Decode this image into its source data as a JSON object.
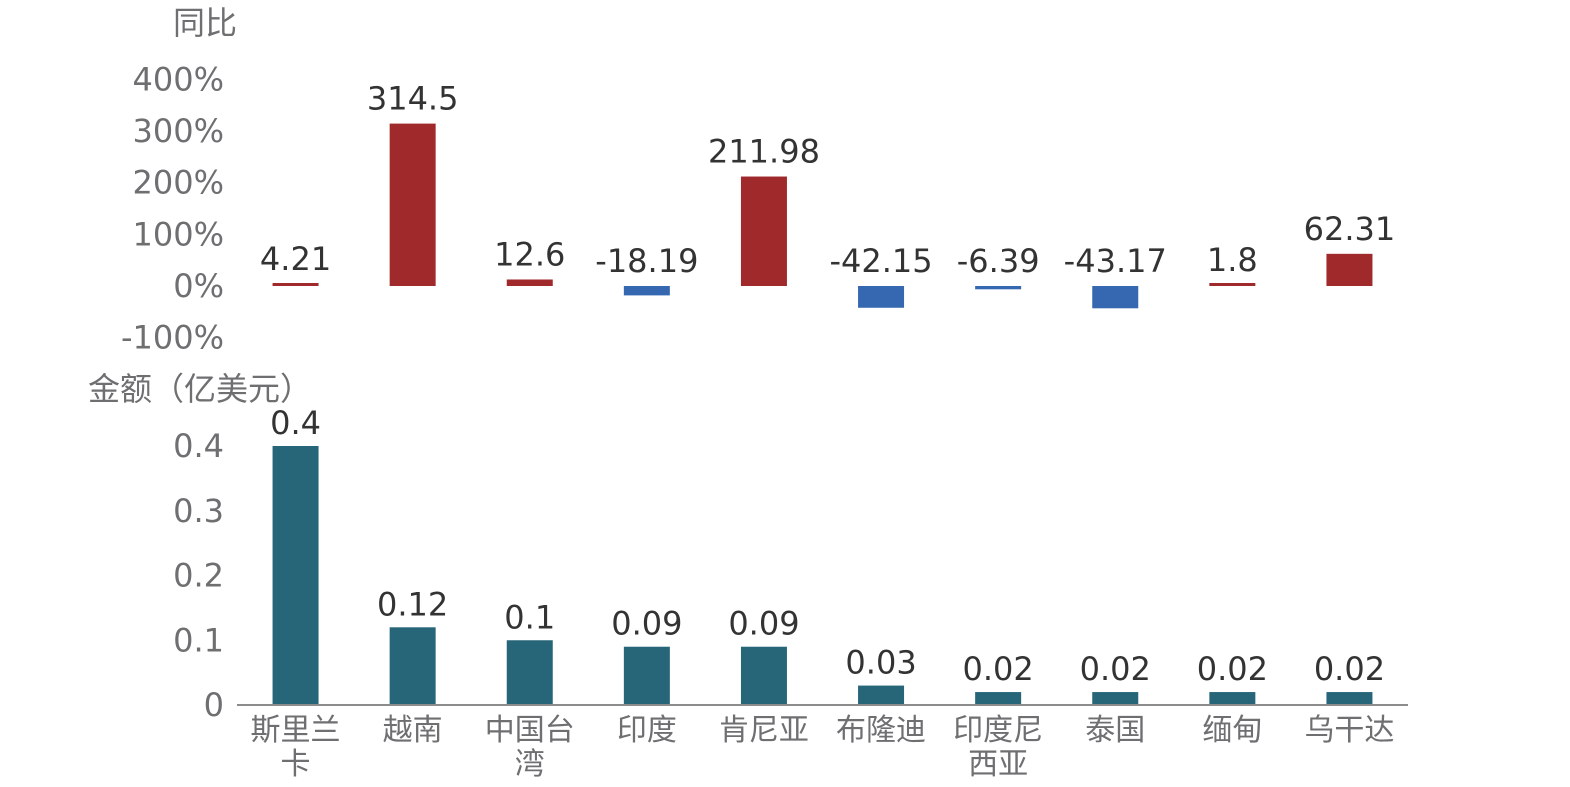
{
  "chart_data": [
    {
      "type": "bar",
      "ylabel": "同比",
      "categories": [
        "斯里兰卡",
        "越南",
        "中国台湾",
        "印度",
        "肯尼亚",
        "布隆迪",
        "印度尼西亚",
        "泰国",
        "缅甸",
        "乌干达"
      ],
      "values": [
        4.21,
        314.5,
        12.6,
        -18.19,
        211.98,
        -42.15,
        -6.39,
        -43.17,
        1.8,
        62.31
      ],
      "data_labels": [
        "4.21",
        "314.5",
        "12.6",
        "-18.19",
        "211.98",
        "-42.15",
        "-6.39",
        "-43.17",
        "1.8",
        "62.31"
      ],
      "ylim": [
        -100,
        400
      ],
      "yticks": [
        "400%",
        "300%",
        "200%",
        "100%",
        "0%",
        "-100%"
      ],
      "colors": {
        "positive": "#a0292b",
        "negative": "#3568b0"
      },
      "grid": false,
      "legend": "none"
    },
    {
      "type": "bar",
      "ylabel": "金额（亿美元）",
      "categories": [
        "斯里兰卡",
        "越南",
        "中国台湾",
        "印度",
        "肯尼亚",
        "布隆迪",
        "印度尼西亚",
        "泰国",
        "缅甸",
        "乌干达"
      ],
      "x_tick_labels": [
        [
          "斯里兰",
          "卡"
        ],
        [
          "越南"
        ],
        [
          "中国台",
          "湾"
        ],
        [
          "印度"
        ],
        [
          "肯尼亚"
        ],
        [
          "布隆迪"
        ],
        [
          "印度尼",
          "西亚"
        ],
        [
          "泰国"
        ],
        [
          "缅甸"
        ],
        [
          "乌干达"
        ]
      ],
      "values": [
        0.4,
        0.12,
        0.1,
        0.09,
        0.09,
        0.03,
        0.02,
        0.02,
        0.02,
        0.02
      ],
      "data_labels": [
        "0.4",
        "0.12",
        "0.1",
        "0.09",
        "0.09",
        "0.03",
        "0.02",
        "0.02",
        "0.02",
        "0.02"
      ],
      "ylim": [
        0,
        0.4
      ],
      "yticks": [
        "0.4",
        "0.3",
        "0.2",
        "0.1",
        "0"
      ],
      "colors": {
        "bar": "#276679",
        "axis": "#8c8c8c"
      },
      "grid": false,
      "legend": "none"
    }
  ]
}
